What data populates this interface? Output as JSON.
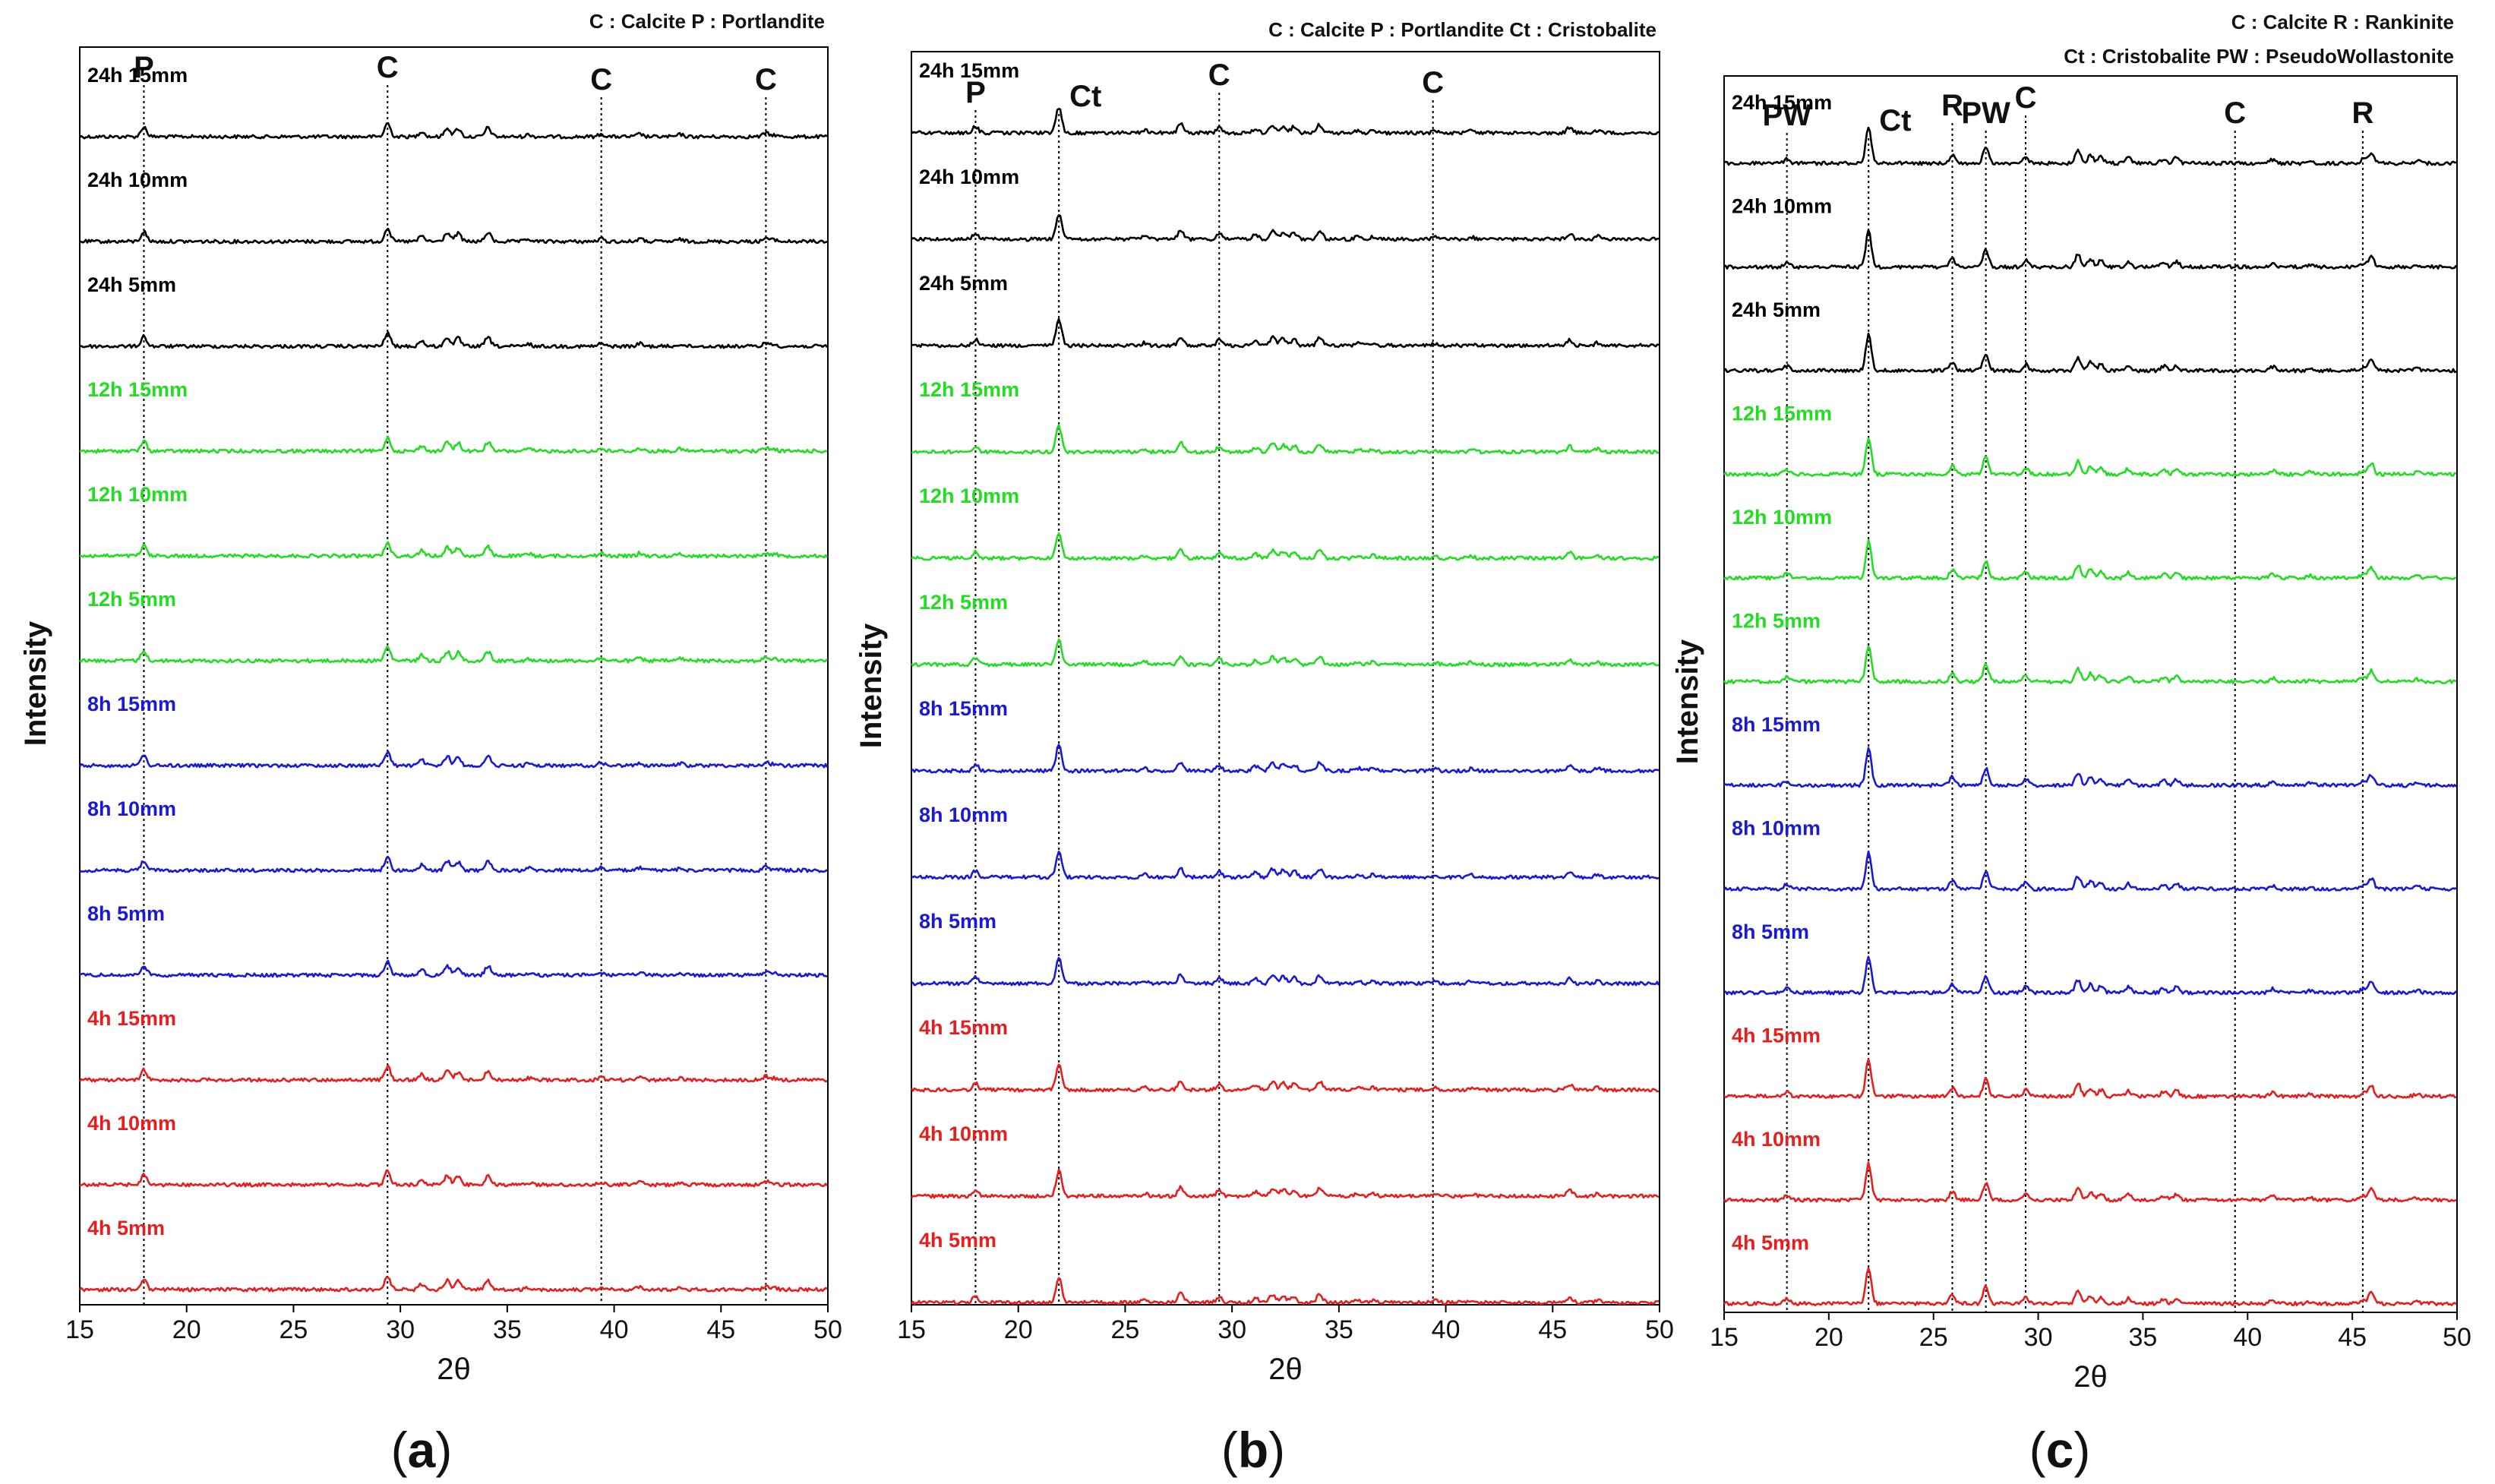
{
  "colors": {
    "24h": "#000000",
    "12h": "#22dd22",
    "8h": "#1a1ad6",
    "4h": "#e61e1e"
  },
  "chart_data": [
    {
      "type": "line",
      "panel": "a",
      "caption": {
        "open": "(",
        "letter": "a",
        "close": ")"
      },
      "legend": [
        "C : Calcite  P : Portlandite"
      ],
      "xlabel": "2θ",
      "ylabel": "Intensity",
      "xlim": [
        15,
        50
      ],
      "xticks": [
        15,
        20,
        25,
        30,
        35,
        40,
        45,
        50
      ],
      "peak_lines": [
        {
          "label": "P",
          "x": 18.0
        },
        {
          "label": "C",
          "x": 29.4
        },
        {
          "label": "C",
          "x": 39.4
        },
        {
          "label": "C",
          "x": 47.1
        }
      ],
      "series": [
        {
          "name": "24h 15mm",
          "group": "24h"
        },
        {
          "name": "24h 10mm",
          "group": "24h"
        },
        {
          "name": "24h 5mm",
          "group": "24h"
        },
        {
          "name": "12h 15mm",
          "group": "12h"
        },
        {
          "name": "12h 10mm",
          "group": "12h"
        },
        {
          "name": "12h 5mm",
          "group": "12h"
        },
        {
          "name": "8h 15mm",
          "group": "8h"
        },
        {
          "name": "8h 10mm",
          "group": "8h"
        },
        {
          "name": "8h 5mm",
          "group": "8h"
        },
        {
          "name": "4h 15mm",
          "group": "4h"
        },
        {
          "name": "4h 10mm",
          "group": "4h"
        },
        {
          "name": "4h 5mm",
          "group": "4h"
        }
      ],
      "peaks": [
        {
          "x": 18.0,
          "h": 0.55
        },
        {
          "x": 29.4,
          "h": 0.75
        },
        {
          "x": 31.0,
          "h": 0.3
        },
        {
          "x": 32.2,
          "h": 0.5
        },
        {
          "x": 32.7,
          "h": 0.45
        },
        {
          "x": 34.1,
          "h": 0.5
        },
        {
          "x": 36.0,
          "h": 0.12
        },
        {
          "x": 39.4,
          "h": 0.15
        },
        {
          "x": 41.2,
          "h": 0.15
        },
        {
          "x": 43.1,
          "h": 0.12
        },
        {
          "x": 47.1,
          "h": 0.2
        },
        {
          "x": 47.5,
          "h": 0.1
        }
      ]
    },
    {
      "type": "line",
      "panel": "b",
      "caption": {
        "open": "(",
        "letter": "b",
        "close": ")"
      },
      "legend": [
        "C : Calcite  P : Portlandite  Ct : Cristobalite"
      ],
      "xlabel": "2θ",
      "ylabel": "Intensity",
      "xlim": [
        15,
        50
      ],
      "xticks": [
        15,
        20,
        25,
        30,
        35,
        40,
        45,
        50
      ],
      "peak_lines": [
        {
          "label": "P",
          "x": 18.0
        },
        {
          "label": "Ct",
          "x": 21.9
        },
        {
          "label": "C",
          "x": 29.4
        },
        {
          "label": "C",
          "x": 39.4
        }
      ],
      "series": [
        {
          "name": "24h 15mm",
          "group": "24h"
        },
        {
          "name": "24h 10mm",
          "group": "24h"
        },
        {
          "name": "24h 5mm",
          "group": "24h"
        },
        {
          "name": "12h 15mm",
          "group": "12h"
        },
        {
          "name": "12h 10mm",
          "group": "12h"
        },
        {
          "name": "12h 5mm",
          "group": "12h"
        },
        {
          "name": "8h 15mm",
          "group": "8h"
        },
        {
          "name": "8h 10mm",
          "group": "8h"
        },
        {
          "name": "8h 5mm",
          "group": "8h"
        },
        {
          "name": "4h 15mm",
          "group": "4h"
        },
        {
          "name": "4h 10mm",
          "group": "4h"
        },
        {
          "name": "4h 5mm",
          "group": "4h"
        }
      ],
      "peaks": [
        {
          "x": 18.0,
          "h": 0.35
        },
        {
          "x": 21.9,
          "h": 1.4
        },
        {
          "x": 25.9,
          "h": 0.15
        },
        {
          "x": 27.6,
          "h": 0.5
        },
        {
          "x": 29.4,
          "h": 0.3
        },
        {
          "x": 31.1,
          "h": 0.25
        },
        {
          "x": 31.9,
          "h": 0.45
        },
        {
          "x": 32.4,
          "h": 0.4
        },
        {
          "x": 32.9,
          "h": 0.35
        },
        {
          "x": 34.1,
          "h": 0.45
        },
        {
          "x": 35.9,
          "h": 0.15
        },
        {
          "x": 36.6,
          "h": 0.15
        },
        {
          "x": 39.5,
          "h": 0.1
        },
        {
          "x": 41.2,
          "h": 0.12
        },
        {
          "x": 45.8,
          "h": 0.3
        },
        {
          "x": 47.1,
          "h": 0.15
        }
      ]
    },
    {
      "type": "line",
      "panel": "c",
      "caption": {
        "open": "(",
        "letter": "c",
        "close": ")"
      },
      "legend": [
        "C : Calcite  R : Rankinite",
        "Ct : Cristobalite  PW : PseudoWollastonite"
      ],
      "xlabel": "2θ",
      "ylabel": "Intensity",
      "xlim": [
        15,
        50
      ],
      "xticks": [
        15,
        20,
        25,
        30,
        35,
        40,
        45,
        50
      ],
      "peak_lines": [
        {
          "label": "PW",
          "x": 18.0
        },
        {
          "label": "Ct",
          "x": 21.9
        },
        {
          "label": "R",
          "x": 25.9
        },
        {
          "label": "PW",
          "x": 27.5
        },
        {
          "label": "C",
          "x": 29.4
        },
        {
          "label": "C",
          "x": 39.4
        },
        {
          "label": "R",
          "x": 45.5
        }
      ],
      "series": [
        {
          "name": "24h 15mm",
          "group": "24h"
        },
        {
          "name": "24h 10mm",
          "group": "24h"
        },
        {
          "name": "24h 5mm",
          "group": "24h"
        },
        {
          "name": "12h 15mm",
          "group": "12h"
        },
        {
          "name": "12h 10mm",
          "group": "12h"
        },
        {
          "name": "12h 5mm",
          "group": "12h"
        },
        {
          "name": "8h 15mm",
          "group": "8h"
        },
        {
          "name": "8h 10mm",
          "group": "8h"
        },
        {
          "name": "8h 5mm",
          "group": "8h"
        },
        {
          "name": "4h 15mm",
          "group": "4h"
        },
        {
          "name": "4h 10mm",
          "group": "4h"
        },
        {
          "name": "4h 5mm",
          "group": "4h"
        }
      ],
      "peaks": [
        {
          "x": 18.0,
          "h": 0.25
        },
        {
          "x": 21.9,
          "h": 2.0
        },
        {
          "x": 25.9,
          "h": 0.45
        },
        {
          "x": 27.5,
          "h": 0.95
        },
        {
          "x": 29.4,
          "h": 0.35
        },
        {
          "x": 31.9,
          "h": 0.7
        },
        {
          "x": 32.5,
          "h": 0.45
        },
        {
          "x": 33.0,
          "h": 0.35
        },
        {
          "x": 34.3,
          "h": 0.3
        },
        {
          "x": 36.0,
          "h": 0.25
        },
        {
          "x": 36.6,
          "h": 0.3
        },
        {
          "x": 41.2,
          "h": 0.2
        },
        {
          "x": 43.0,
          "h": 0.12
        },
        {
          "x": 45.5,
          "h": 0.2
        },
        {
          "x": 45.9,
          "h": 0.6
        },
        {
          "x": 48.1,
          "h": 0.12
        }
      ]
    }
  ]
}
